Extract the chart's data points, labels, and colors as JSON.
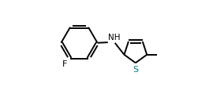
{
  "bg_color": "#ffffff",
  "bond_color": "#000000",
  "s_color": "#008080",
  "n_color": "#000000",
  "f_color": "#000000",
  "line_width": 1.4,
  "dbo": 0.013,
  "figsize": [
    2.84,
    1.2
  ],
  "dpi": 100,
  "xlim": [
    0.0,
    1.0
  ],
  "ylim": [
    0.05,
    0.95
  ]
}
